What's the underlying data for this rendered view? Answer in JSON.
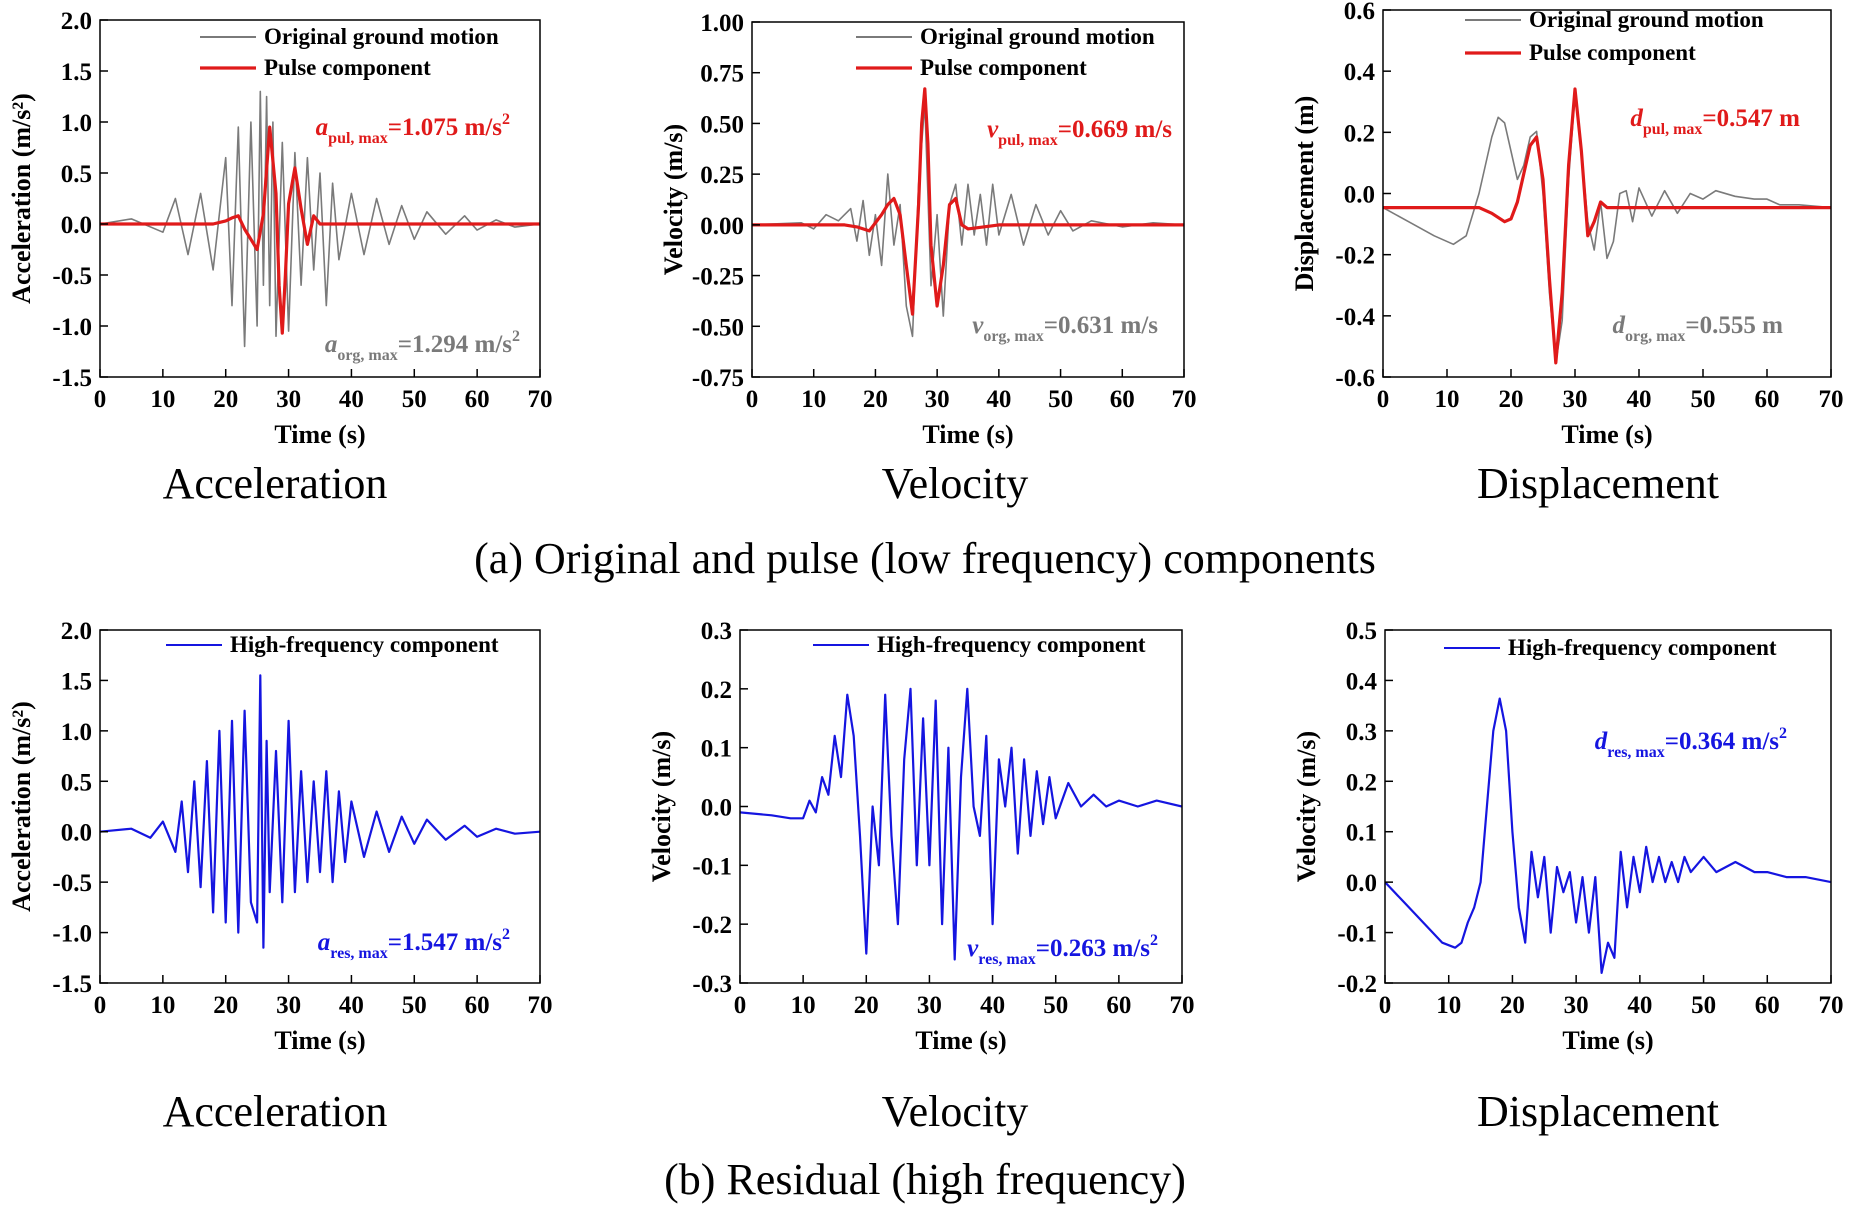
{
  "figure": {
    "row_captions": [
      "(a) Original and pulse (low frequency) components",
      "(b) Residual (high frequency)"
    ],
    "sub_captions": [
      "Acceleration",
      "Velocity",
      "Displacement",
      "Acceleration",
      "Velocity",
      "Displacement"
    ]
  },
  "colors": {
    "original": "#7a7a7a",
    "pulse": "#e01a1a",
    "residual": "#1515e0",
    "axis": "#000000"
  },
  "chart_data": [
    {
      "type": "line",
      "xlabel": "Time (s)",
      "ylabel": "Acceleration (m/s²)",
      "xlim": [
        0,
        70
      ],
      "ylim": [
        -1.5,
        2.0
      ],
      "xticks": [
        "0",
        "10",
        "20",
        "30",
        "40",
        "50",
        "60",
        "70"
      ],
      "yticks": [
        "-1.5",
        "-1.0",
        "-0.5",
        "0.0",
        "0.5",
        "1.0",
        "1.5",
        "2.0"
      ],
      "legend": [
        "Original ground motion",
        "Pulse component"
      ],
      "annotations": [
        {
          "var": "a",
          "sub": "pul, max",
          "value": "=1.075 m/s",
          "sup": "2",
          "series": "pulse"
        },
        {
          "var": "a",
          "sub": "org, max",
          "value": "=1.294 m/s",
          "sup": "2",
          "series": "original"
        }
      ],
      "series": [
        {
          "name": "Original ground motion",
          "style": "original",
          "x": [
            0,
            5,
            10,
            12,
            14,
            16,
            18,
            20,
            21,
            22,
            23,
            24,
            25,
            25.5,
            26,
            26.5,
            27,
            27.5,
            28,
            29,
            30,
            31,
            32,
            33,
            34,
            35,
            36,
            37,
            38,
            40,
            42,
            44,
            46,
            48,
            50,
            52,
            55,
            58,
            60,
            63,
            66,
            70
          ],
          "y": [
            0,
            0.05,
            -0.08,
            0.25,
            -0.3,
            0.3,
            -0.45,
            0.65,
            -0.8,
            0.95,
            -1.2,
            1.0,
            -1.0,
            1.3,
            -0.6,
            1.25,
            -0.8,
            1.0,
            -1.1,
            0.8,
            -1.05,
            0.7,
            -0.6,
            0.65,
            -0.45,
            0.5,
            -0.8,
            0.4,
            -0.35,
            0.3,
            -0.3,
            0.25,
            -0.2,
            0.18,
            -0.15,
            0.12,
            -0.1,
            0.08,
            -0.06,
            0.04,
            -0.03,
            0
          ]
        },
        {
          "name": "Pulse component",
          "style": "pulse",
          "x": [
            0,
            18,
            20,
            21,
            22,
            23,
            24,
            25,
            26,
            27,
            28,
            28.5,
            29,
            29.5,
            30,
            31,
            32,
            33,
            34,
            35,
            40,
            70
          ],
          "y": [
            0,
            0,
            0.03,
            0.06,
            0.08,
            -0.05,
            -0.15,
            -0.25,
            0.1,
            0.95,
            0.3,
            -0.6,
            -1.07,
            -0.5,
            0.2,
            0.55,
            0.15,
            -0.2,
            0.08,
            0,
            0,
            0
          ]
        }
      ]
    },
    {
      "type": "line",
      "xlabel": "Time (s)",
      "ylabel": "Velocity (m/s)",
      "xlim": [
        0,
        70
      ],
      "ylim": [
        -0.75,
        1.0
      ],
      "xticks": [
        "0",
        "10",
        "20",
        "30",
        "40",
        "50",
        "60",
        "70"
      ],
      "yticks": [
        "-0.75",
        "-0.50",
        "-0.25",
        "0.00",
        "0.25",
        "0.50",
        "0.75",
        "1.00"
      ],
      "legend": [
        "Original ground motion",
        "Pulse component"
      ],
      "annotations": [
        {
          "var": "v",
          "sub": "pul, max",
          "value": "=0.669 m/s",
          "sup": "",
          "series": "pulse"
        },
        {
          "var": "v",
          "sub": "org, max",
          "value": "=0.631 m/s",
          "sup": "",
          "series": "original"
        }
      ],
      "series": [
        {
          "name": "Original ground motion",
          "style": "original",
          "x": [
            0,
            8,
            10,
            12,
            14,
            16,
            17,
            18,
            19,
            20,
            21,
            22,
            23,
            24,
            25,
            26,
            27,
            28,
            29,
            30,
            31,
            32,
            33,
            34,
            35,
            36,
            37,
            38,
            39,
            40,
            42,
            44,
            46,
            48,
            50,
            52,
            55,
            60,
            65,
            70
          ],
          "y": [
            0,
            0.01,
            -0.02,
            0.05,
            0.02,
            0.08,
            -0.08,
            0.12,
            -0.15,
            0.05,
            -0.2,
            0.25,
            -0.1,
            0.1,
            -0.4,
            -0.55,
            0.2,
            0.6,
            -0.3,
            0.05,
            -0.45,
            0.1,
            0.2,
            -0.1,
            0.2,
            -0.05,
            0.15,
            -0.1,
            0.2,
            -0.05,
            0.15,
            -0.1,
            0.1,
            -0.05,
            0.07,
            -0.03,
            0.02,
            -0.01,
            0.01,
            0
          ]
        },
        {
          "name": "Pulse component",
          "style": "pulse",
          "x": [
            0,
            15,
            17,
            19,
            21,
            22,
            23,
            24,
            25,
            26,
            27,
            27.5,
            28,
            28.5,
            29,
            30,
            31,
            32,
            33,
            34,
            35,
            40,
            70
          ],
          "y": [
            0,
            0,
            -0.01,
            -0.03,
            0.05,
            0.1,
            0.13,
            0.05,
            -0.2,
            -0.44,
            0.1,
            0.5,
            0.67,
            0.4,
            -0.1,
            -0.4,
            -0.2,
            0.1,
            0.13,
            0,
            -0.02,
            0,
            0
          ]
        }
      ]
    },
    {
      "type": "line",
      "xlabel": "Time (s)",
      "ylabel": "Displacement (m)",
      "xlim": [
        0,
        70
      ],
      "ylim": [
        -0.6,
        0.7
      ],
      "xticks": [
        "0",
        "10",
        "20",
        "30",
        "40",
        "50",
        "60",
        "70"
      ],
      "yticks": [
        "-0.6",
        "-0.4",
        "-0.2",
        "0.0",
        "0.2",
        "0.4",
        "0.6"
      ],
      "legend": [
        "Original ground motion",
        "Pulse component"
      ],
      "annotations": [
        {
          "var": "d",
          "sub": "pul, max",
          "value": "=0.547 m",
          "sup": "",
          "series": "pulse"
        },
        {
          "var": "d",
          "sub": "org, max",
          "value": "=0.555 m",
          "sup": "",
          "series": "original"
        }
      ],
      "series": [
        {
          "name": "Original ground motion",
          "style": "original",
          "x": [
            0,
            4,
            8,
            11,
            13,
            15,
            17,
            18,
            19,
            20,
            21,
            22,
            23,
            24,
            25,
            26,
            27,
            28,
            29,
            30,
            31,
            32,
            33,
            34,
            35,
            36,
            37,
            38,
            39,
            40,
            42,
            44,
            46,
            48,
            50,
            52,
            55,
            58,
            60,
            62,
            65,
            70
          ],
          "y": [
            0,
            -0.05,
            -0.1,
            -0.13,
            -0.1,
            0.05,
            0.25,
            0.32,
            0.3,
            0.2,
            0.1,
            0.15,
            0.25,
            0.27,
            0.05,
            -0.3,
            -0.55,
            -0.4,
            0.1,
            0.4,
            0.2,
            -0.05,
            -0.15,
            0.02,
            -0.18,
            -0.12,
            0.05,
            0.06,
            -0.05,
            0.07,
            -0.03,
            0.06,
            -0.02,
            0.05,
            0.03,
            0.06,
            0.04,
            0.03,
            0.03,
            0.01,
            0.01,
            0
          ]
        },
        {
          "name": "Pulse component",
          "style": "pulse",
          "x": [
            0,
            15,
            17,
            19,
            20,
            21,
            22,
            23,
            24,
            25,
            26,
            27,
            28,
            29,
            30,
            31,
            32,
            33,
            34,
            35,
            40,
            70
          ],
          "y": [
            0,
            0,
            -0.02,
            -0.05,
            -0.04,
            0.02,
            0.12,
            0.22,
            0.25,
            0.1,
            -0.25,
            -0.55,
            -0.3,
            0.15,
            0.42,
            0.2,
            -0.1,
            -0.05,
            0.02,
            0,
            0,
            0
          ]
        }
      ]
    },
    {
      "type": "line",
      "xlabel": "Time (s)",
      "ylabel": "Acceleration (m/s²)",
      "xlim": [
        0,
        70
      ],
      "ylim": [
        -1.5,
        2.0
      ],
      "xticks": [
        "0",
        "10",
        "20",
        "30",
        "40",
        "50",
        "60",
        "70"
      ],
      "yticks": [
        "-1.5",
        "-1.0",
        "-0.5",
        "0.0",
        "0.5",
        "1.0",
        "1.5",
        "2.0"
      ],
      "legend": [
        "High-frequency component"
      ],
      "annotations": [
        {
          "var": "a",
          "sub": "res, max",
          "value": "=1.547 m/s",
          "sup": "2",
          "series": "residual"
        }
      ],
      "series": [
        {
          "name": "High-frequency component",
          "style": "residual",
          "x": [
            0,
            5,
            8,
            10,
            12,
            13,
            14,
            15,
            16,
            17,
            18,
            19,
            20,
            21,
            22,
            23,
            24,
            25,
            25.5,
            26,
            26.5,
            27,
            28,
            29,
            30,
            31,
            32,
            33,
            34,
            35,
            36,
            37,
            38,
            39,
            40,
            42,
            44,
            46,
            48,
            50,
            52,
            55,
            58,
            60,
            63,
            66,
            70
          ],
          "y": [
            0,
            0.03,
            -0.06,
            0.1,
            -0.2,
            0.3,
            -0.4,
            0.5,
            -0.55,
            0.7,
            -0.8,
            1.0,
            -0.9,
            1.1,
            -1.0,
            1.2,
            -0.7,
            -0.9,
            1.55,
            -1.15,
            0.9,
            -0.6,
            0.8,
            -0.7,
            1.1,
            -0.6,
            0.6,
            -0.5,
            0.5,
            -0.4,
            0.6,
            -0.5,
            0.4,
            -0.3,
            0.3,
            -0.25,
            0.2,
            -0.2,
            0.15,
            -0.12,
            0.12,
            -0.08,
            0.06,
            -0.05,
            0.03,
            -0.02,
            0
          ]
        }
      ]
    },
    {
      "type": "line",
      "xlabel": "Time (s)",
      "ylabel": "Velocity (m/s)",
      "xlim": [
        0,
        70
      ],
      "ylim": [
        -0.3,
        0.3
      ],
      "xticks": [
        "0",
        "10",
        "20",
        "30",
        "40",
        "50",
        "60",
        "70"
      ],
      "yticks": [
        "-0.3",
        "-0.2",
        "-0.1",
        "0.0",
        "0.1",
        "0.2",
        "0.3"
      ],
      "legend": [
        "High-frequency component"
      ],
      "annotations": [
        {
          "var": "v",
          "sub": "res, max",
          "value": "=0.263 m/s",
          "sup": "2",
          "series": "residual"
        }
      ],
      "series": [
        {
          "name": "High-frequency component",
          "style": "residual",
          "x": [
            0,
            5,
            8,
            10,
            11,
            12,
            13,
            14,
            15,
            16,
            17,
            18,
            19,
            20,
            21,
            22,
            23,
            24,
            25,
            26,
            27,
            28,
            29,
            30,
            31,
            32,
            33,
            34,
            35,
            36,
            37,
            38,
            39,
            40,
            41,
            42,
            43,
            44,
            45,
            46,
            47,
            48,
            49,
            50,
            52,
            54,
            56,
            58,
            60,
            63,
            66,
            70
          ],
          "y": [
            -0.01,
            -0.015,
            -0.02,
            -0.02,
            0.01,
            -0.01,
            0.05,
            0.02,
            0.12,
            0.05,
            0.19,
            0.12,
            -0.05,
            -0.25,
            0.0,
            -0.1,
            0.19,
            -0.05,
            -0.2,
            0.08,
            0.2,
            -0.1,
            0.15,
            -0.1,
            0.18,
            -0.2,
            0.1,
            -0.26,
            0.05,
            0.2,
            0.0,
            -0.05,
            0.12,
            -0.2,
            0.08,
            0.0,
            0.1,
            -0.08,
            0.08,
            -0.05,
            0.06,
            -0.03,
            0.05,
            -0.02,
            0.04,
            0.0,
            0.02,
            0.0,
            0.01,
            0.0,
            0.01,
            0.0
          ]
        }
      ]
    },
    {
      "type": "line",
      "xlabel": "Time (s)",
      "ylabel": "Velocity (m/s)",
      "xlim": [
        0,
        70
      ],
      "ylim": [
        -0.2,
        0.5
      ],
      "xticks": [
        "0",
        "10",
        "20",
        "30",
        "40",
        "50",
        "60",
        "70"
      ],
      "yticks": [
        "-0.2",
        "-0.1",
        "0.0",
        "0.1",
        "0.2",
        "0.3",
        "0.4",
        "0.5"
      ],
      "legend": [
        "High-frequency component"
      ],
      "annotations": [
        {
          "var": "d",
          "sub": "res, max",
          "value": "=0.364 m/s",
          "sup": "2",
          "series": "residual"
        }
      ],
      "series": [
        {
          "name": "High-frequency component",
          "style": "residual",
          "x": [
            0,
            3,
            6,
            9,
            11,
            12,
            13,
            14,
            15,
            16,
            17,
            18,
            19,
            20,
            21,
            22,
            23,
            24,
            25,
            26,
            27,
            28,
            29,
            30,
            31,
            32,
            33,
            34,
            35,
            36,
            37,
            38,
            39,
            40,
            41,
            42,
            43,
            44,
            45,
            46,
            47,
            48,
            50,
            52,
            55,
            58,
            60,
            63,
            66,
            70
          ],
          "y": [
            0,
            -0.04,
            -0.08,
            -0.12,
            -0.13,
            -0.12,
            -0.08,
            -0.05,
            0.0,
            0.15,
            0.3,
            0.364,
            0.3,
            0.1,
            -0.05,
            -0.12,
            0.06,
            -0.03,
            0.05,
            -0.1,
            0.03,
            -0.02,
            0.02,
            -0.08,
            0.01,
            -0.1,
            0.01,
            -0.18,
            -0.12,
            -0.15,
            0.06,
            -0.05,
            0.05,
            -0.02,
            0.07,
            0.0,
            0.05,
            0.0,
            0.04,
            0.0,
            0.05,
            0.02,
            0.05,
            0.02,
            0.04,
            0.02,
            0.02,
            0.01,
            0.01,
            0.0
          ]
        }
      ]
    }
  ]
}
